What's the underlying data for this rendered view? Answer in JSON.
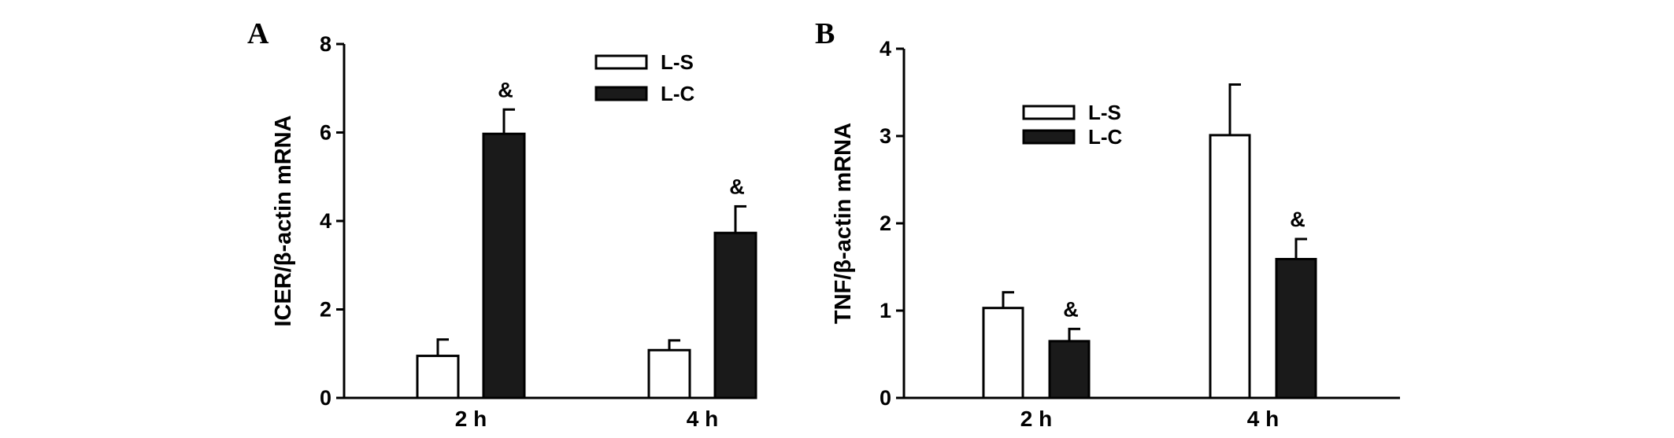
{
  "chart_data": [
    {
      "type": "bar",
      "panel_label": "A",
      "categories": [
        "2 h",
        "4 h"
      ],
      "series": [
        {
          "name": "L-S",
          "values": [
            0.95,
            1.08
          ],
          "errors": [
            0.37,
            0.22
          ],
          "color": "#ffffff"
        },
        {
          "name": "L-C",
          "values": [
            5.97,
            3.73
          ],
          "errors": [
            0.55,
            0.6
          ],
          "color": "#1a1a1a"
        }
      ],
      "annotations": [
        {
          "series": "L-C",
          "category": "2 h",
          "text": "&"
        },
        {
          "series": "L-C",
          "category": "4 h",
          "text": "&"
        }
      ],
      "ylabel": "ICER/β-actin mRNA",
      "xlabel": "",
      "ylim": [
        0,
        8
      ],
      "yticks": [
        "0",
        "2",
        "4",
        "6",
        "8"
      ],
      "legend": "top-right",
      "grid": false
    },
    {
      "type": "bar",
      "panel_label": "B",
      "categories": [
        "2 h",
        "4 h"
      ],
      "series": [
        {
          "name": "L-S",
          "values": [
            1.03,
            3.01
          ],
          "errors": [
            0.18,
            0.58
          ],
          "color": "#ffffff"
        },
        {
          "name": "L-C",
          "values": [
            0.65,
            1.59
          ],
          "errors": [
            0.14,
            0.23
          ],
          "color": "#1a1a1a"
        }
      ],
      "annotations": [
        {
          "series": "L-C",
          "category": "2 h",
          "text": "&"
        },
        {
          "series": "L-C",
          "category": "4 h",
          "text": "&"
        }
      ],
      "ylabel": "TNF/β-actin mRNA",
      "xlabel": "",
      "ylim": [
        0,
        4
      ],
      "yticks": [
        "0",
        "1",
        "2",
        "3",
        "4"
      ],
      "legend": "top-left",
      "grid": false
    }
  ]
}
